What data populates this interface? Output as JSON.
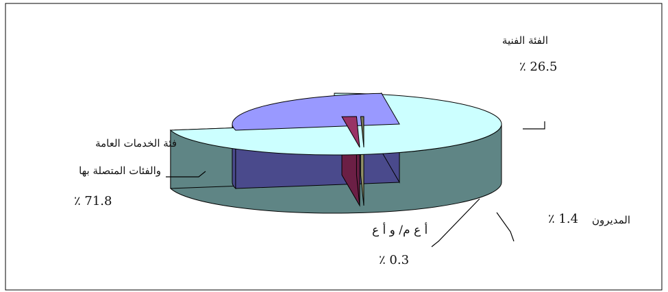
{
  "chart_data": {
    "type": "pie",
    "title": "",
    "slices": [
      {
        "label_lines": [
          "فئة الخدمات العامة",
          "والفئات المتصلة بها"
        ],
        "pct_text": "٪ 71.8",
        "value": 71.8,
        "top_color": "#ccffff",
        "side_color": "#5f8585"
      },
      {
        "label_lines": [
          "الفئة الفنية"
        ],
        "pct_text": "٪ 26.5",
        "value": 26.5,
        "top_color": "#9999ff",
        "side_color": "#4a4a8c"
      },
      {
        "label_lines": [
          "المديرون"
        ],
        "pct_text": "٪ 1.4",
        "value": 1.4,
        "top_color": "#993366",
        "side_color": "#6b1f45"
      },
      {
        "label_lines": [
          "أ ع م/ و أ ع"
        ],
        "pct_text": "٪ 0.3",
        "value": 0.3,
        "top_color": "#7a7a5c",
        "side_color": "#8f8f66"
      }
    ]
  }
}
